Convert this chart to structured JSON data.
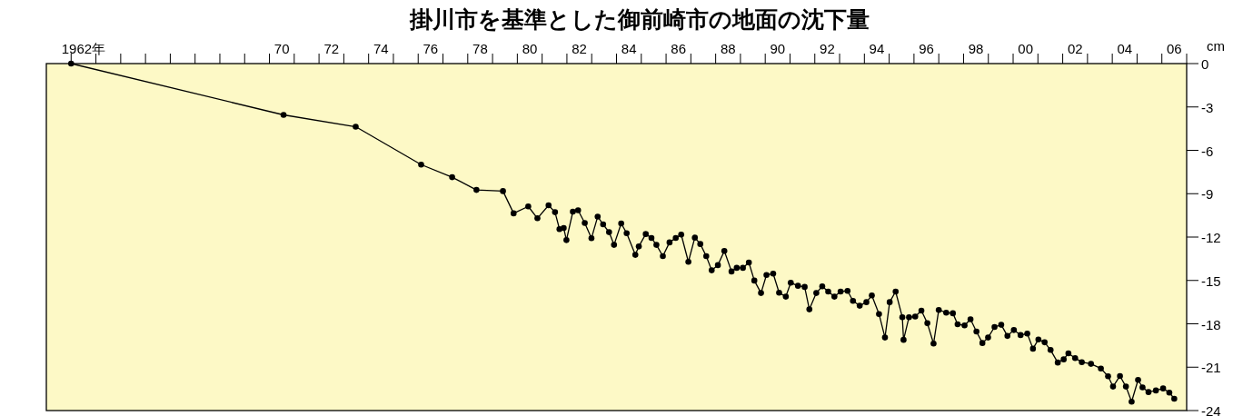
{
  "chart_data": {
    "type": "line",
    "title": "掛川市を基準とした御前崎市の地面の沈下量",
    "ylabel": "cm",
    "color": "#000000",
    "marker": "circle",
    "line_style": "solid",
    "x": [
      1961.5,
      1970.07,
      1972.98,
      1975.62,
      1976.87,
      1977.85,
      1978.92,
      1979.35,
      1979.94,
      1980.31,
      1980.76,
      1981.02,
      1981.2,
      1981.37,
      1981.48,
      1981.74,
      1981.95,
      1982.22,
      1982.49,
      1982.74,
      1982.96,
      1983.2,
      1983.4,
      1983.69,
      1983.91,
      1984.26,
      1984.4,
      1984.68,
      1984.91,
      1985.11,
      1985.37,
      1985.64,
      1985.89,
      1986.11,
      1986.4,
      1986.66,
      1986.88,
      1987.12,
      1987.34,
      1987.59,
      1987.85,
      1988.14,
      1988.35,
      1988.6,
      1988.84,
      1989.06,
      1989.33,
      1989.55,
      1989.82,
      1990.06,
      1990.33,
      1990.53,
      1990.82,
      1991.09,
      1991.28,
      1991.56,
      1991.8,
      1992.04,
      1992.29,
      1992.54,
      1992.82,
      1993.04,
      1993.31,
      1993.58,
      1993.8,
      1994.09,
      1994.33,
      1994.52,
      1994.76,
      1995.03,
      1995.08,
      1995.3,
      1995.55,
      1995.8,
      1996.04,
      1996.29,
      1996.5,
      1996.8,
      1997.07,
      1997.26,
      1997.54,
      1997.78,
      1998.02,
      1998.26,
      1998.49,
      1998.75,
      1999.02,
      1999.27,
      1999.53,
      1999.8,
      2000.07,
      2000.3,
      2000.52,
      2000.77,
      2001.01,
      2001.3,
      2001.54,
      2001.73,
      2002.0,
      2002.27,
      2002.64,
      2003.04,
      2003.33,
      2003.53,
      2003.81,
      2004.05,
      2004.28,
      2004.54,
      2004.72,
      2004.96,
      2005.26,
      2005.55,
      2005.8,
      2006.0
    ],
    "values": [
      0,
      -3.55,
      -4.37,
      -6.99,
      -7.86,
      -8.74,
      -8.82,
      -10.36,
      -9.88,
      -10.7,
      -9.8,
      -10.28,
      -11.45,
      -11.37,
      -12.21,
      -10.24,
      -10.15,
      -11.03,
      -12.08,
      -10.59,
      -11.12,
      -11.66,
      -12.54,
      -11.06,
      -11.73,
      -13.23,
      -12.65,
      -11.79,
      -12.06,
      -12.54,
      -13.32,
      -12.37,
      -12.06,
      -11.83,
      -13.71,
      -12.04,
      -12.48,
      -13.32,
      -14.3,
      -13.94,
      -12.96,
      -14.38,
      -14.13,
      -14.13,
      -13.76,
      -15.01,
      -15.87,
      -14.62,
      -14.53,
      -15.85,
      -16.12,
      -15.16,
      -15.37,
      -15.45,
      -17.0,
      -15.87,
      -15.41,
      -15.77,
      -16.12,
      -15.77,
      -15.72,
      -16.41,
      -16.75,
      -16.5,
      -16.04,
      -17.32,
      -18.95,
      -16.5,
      -15.77,
      -17.54,
      -19.11,
      -17.54,
      -17.5,
      -17.09,
      -17.96,
      -19.37,
      -17.04,
      -17.23,
      -17.27,
      -18.03,
      -18.11,
      -17.69,
      -18.53,
      -19.33,
      -18.95,
      -18.22,
      -18.07,
      -18.84,
      -18.43,
      -18.78,
      -18.68,
      -19.72,
      -19.08,
      -19.28,
      -19.81,
      -20.68,
      -20.46,
      -20.04,
      -20.37,
      -20.65,
      -20.77,
      -21.09,
      -21.63,
      -22.34,
      -21.61,
      -22.34,
      -23.39,
      -21.88,
      -22.4,
      -22.72,
      -22.61,
      -22.47,
      -22.76,
      -23.18
    ],
    "xlim": [
      1960.5,
      2006.5
    ],
    "ylim": [
      -24,
      0
    ],
    "xticks": [
      {
        "value": 1961.5,
        "label": null
      },
      {
        "value": 1962.5,
        "label": null
      },
      {
        "value": 1963.5,
        "label": null
      },
      {
        "value": 1964.5,
        "label": null
      },
      {
        "value": 1965.5,
        "label": null
      },
      {
        "value": 1966.5,
        "label": null
      },
      {
        "value": 1967.5,
        "label": null
      },
      {
        "value": 1968.5,
        "label": null
      },
      {
        "value": 1969.5,
        "label": null
      },
      {
        "value": 1970.5,
        "label": null
      },
      {
        "value": 1971.5,
        "label": null
      },
      {
        "value": 1972.5,
        "label": null
      },
      {
        "value": 1973.5,
        "label": null
      },
      {
        "value": 1974.5,
        "label": null
      },
      {
        "value": 1975.5,
        "label": null
      },
      {
        "value": 1976.5,
        "label": null
      },
      {
        "value": 1977.5,
        "label": null
      },
      {
        "value": 1978.5,
        "label": null
      },
      {
        "value": 1979.5,
        "label": null
      },
      {
        "value": 1980.5,
        "label": null
      },
      {
        "value": 1981.5,
        "label": null
      },
      {
        "value": 1982.5,
        "label": null
      },
      {
        "value": 1983.5,
        "label": null
      },
      {
        "value": 1984.5,
        "label": null
      },
      {
        "value": 1985.5,
        "label": null
      },
      {
        "value": 1986.5,
        "label": null
      },
      {
        "value": 1987.5,
        "label": null
      },
      {
        "value": 1988.5,
        "label": null
      },
      {
        "value": 1989.5,
        "label": null
      },
      {
        "value": 1990.5,
        "label": null
      },
      {
        "value": 1991.5,
        "label": null
      },
      {
        "value": 1992.5,
        "label": null
      },
      {
        "value": 1993.5,
        "label": null
      },
      {
        "value": 1994.5,
        "label": null
      },
      {
        "value": 1995.5,
        "label": null
      },
      {
        "value": 1996.5,
        "label": null
      },
      {
        "value": 1997.5,
        "label": null
      },
      {
        "value": 1998.5,
        "label": null
      },
      {
        "value": 1999.5,
        "label": null
      },
      {
        "value": 2000.5,
        "label": null
      },
      {
        "value": 2001.5,
        "label": null
      },
      {
        "value": 2002.5,
        "label": null
      },
      {
        "value": 2003.5,
        "label": null
      },
      {
        "value": 2004.5,
        "label": null
      },
      {
        "value": 2005.5,
        "label": null
      },
      {
        "value": 2006.5,
        "label": null
      },
      {
        "value": 1962,
        "label": "1962年"
      },
      {
        "value": 1970,
        "label": "70"
      },
      {
        "value": 1972,
        "label": "72"
      },
      {
        "value": 1974,
        "label": "74"
      },
      {
        "value": 1976,
        "label": "76"
      },
      {
        "value": 1978,
        "label": "78"
      },
      {
        "value": 1980,
        "label": "80"
      },
      {
        "value": 1982,
        "label": "82"
      },
      {
        "value": 1984,
        "label": "84"
      },
      {
        "value": 1986,
        "label": "86"
      },
      {
        "value": 1988,
        "label": "88"
      },
      {
        "value": 1990,
        "label": "90"
      },
      {
        "value": 1992,
        "label": "92"
      },
      {
        "value": 1994,
        "label": "94"
      },
      {
        "value": 1996,
        "label": "96"
      },
      {
        "value": 1998,
        "label": "98"
      },
      {
        "value": 2000,
        "label": "00"
      },
      {
        "value": 2002,
        "label": "02"
      },
      {
        "value": 2004,
        "label": "04"
      },
      {
        "value": 2006,
        "label": "06"
      }
    ],
    "yticks": [
      0,
      -3,
      -6,
      -9,
      -12,
      -15,
      -18,
      -21,
      -24
    ]
  }
}
